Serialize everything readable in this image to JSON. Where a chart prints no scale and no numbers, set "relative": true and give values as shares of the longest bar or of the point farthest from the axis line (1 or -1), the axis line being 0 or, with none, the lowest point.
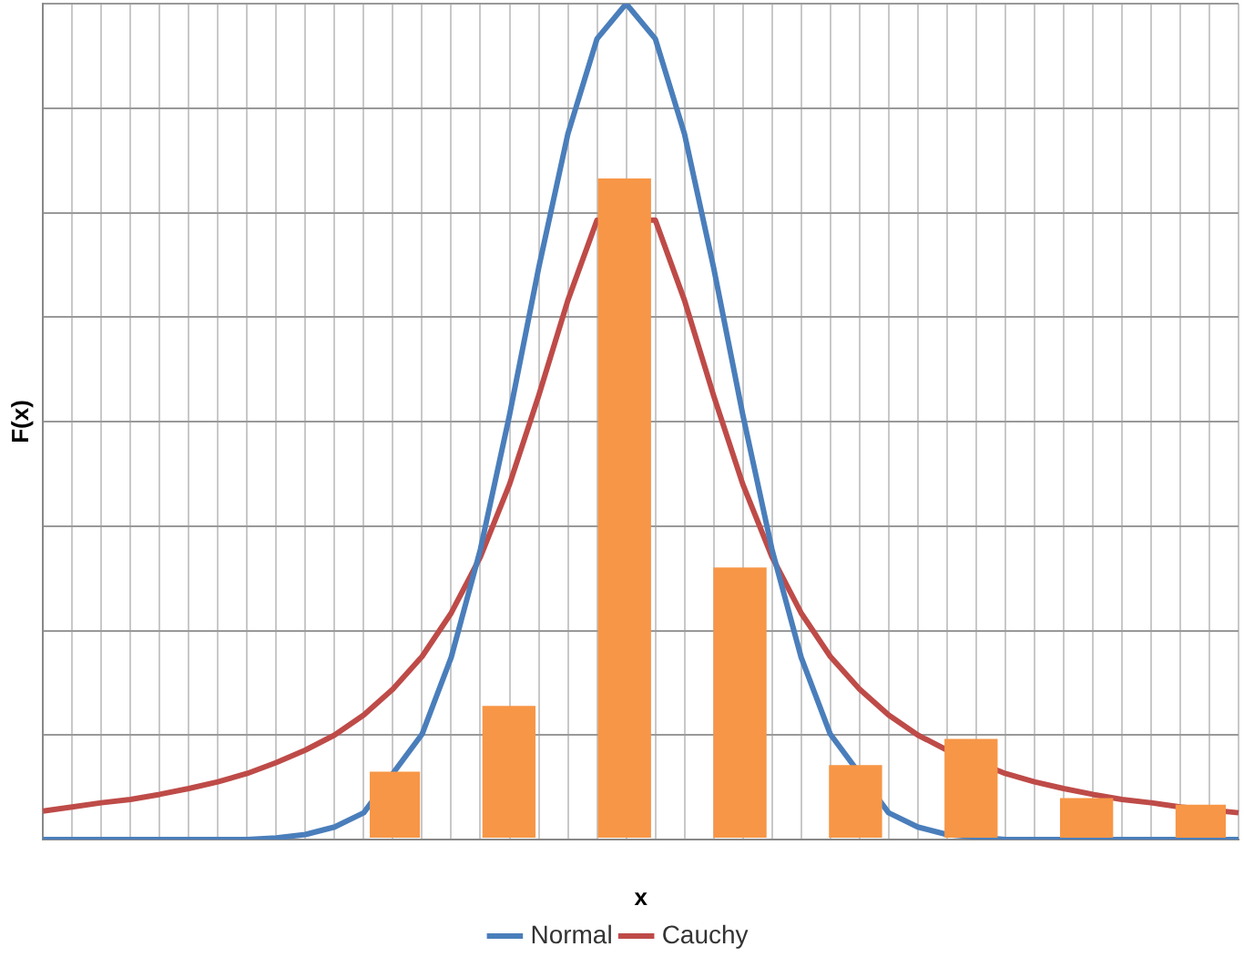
{
  "chart_data": [
    {
      "type": "line",
      "relative": true,
      "xlabel": "x",
      "ylabel": "F(x)",
      "grid": true,
      "legend": "bottom",
      "marker": "none",
      "categories": [
        null,
        null,
        null,
        null,
        null,
        null,
        null,
        null,
        null,
        null,
        null,
        null,
        null,
        null,
        null,
        null,
        null,
        null,
        null,
        null,
        null,
        null,
        null,
        null,
        null,
        null,
        null,
        null,
        null,
        null,
        null,
        null,
        null,
        null,
        null,
        null,
        null,
        null,
        null,
        null,
        null,
        null
      ],
      "series": [
        {
          "name": "Normal",
          "color": "#4a7ebb",
          "values": [
            0,
            0,
            0,
            0,
            0,
            0,
            0,
            0,
            0.002,
            0.006,
            0.015,
            0.032,
            null,
            0.126,
            0.218,
            0.347,
            0.508,
            0.684,
            0.844,
            0.958,
            1,
            0.958,
            0.844,
            0.684,
            0.508,
            0.347,
            0.218,
            0.126,
            null,
            0.032,
            0.015,
            0.006,
            null,
            0,
            0,
            0,
            null,
            0,
            0,
            0,
            null,
            0
          ]
        },
        {
          "name": "Cauchy",
          "color": "#be4b48",
          "values": [
            0.034,
            0.039,
            0.044,
            0.048,
            0.054,
            0.061,
            0.069,
            0.079,
            0.092,
            0.107,
            0.125,
            0.149,
            0.18,
            0.219,
            0.271,
            0.338,
            0.425,
            0.531,
            0.645,
            0.741,
            null,
            0.741,
            0.645,
            0.531,
            0.425,
            0.338,
            0.271,
            0.219,
            0.18,
            0.149,
            0.125,
            0.107,
            null,
            0.079,
            0.069,
            0.061,
            0.054,
            0.048,
            0.044,
            0.039,
            null,
            0.032
          ]
        }
      ]
    },
    {
      "type": "bar",
      "relative": true,
      "categories": [
        null,
        null,
        null,
        null,
        null,
        null,
        null,
        null
      ],
      "series": [
        {
          "color": "#f79646",
          "values": [
            0.1,
            0.2,
            1,
            0.41,
            0.11,
            0.15,
            0.06,
            0.05
          ]
        }
      ]
    }
  ]
}
